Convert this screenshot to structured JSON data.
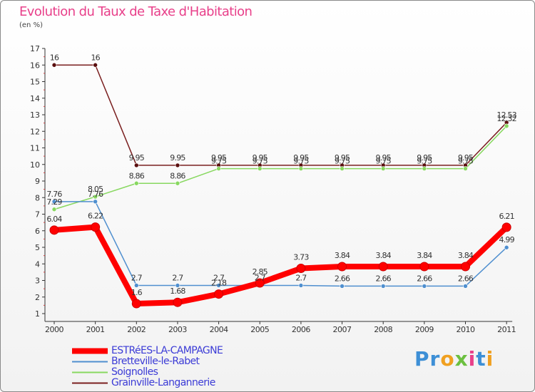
{
  "title": "Evolution du Taux de Taxe d'Habitation",
  "unit_label": "(en %)",
  "logo": {
    "letters": [
      {
        "char": "P",
        "color": "#3d8fd6"
      },
      {
        "char": "r",
        "color": "#3d8fd6"
      },
      {
        "char": "o",
        "color": "#f0a020"
      },
      {
        "char": "x",
        "color": "#6cc040"
      },
      {
        "char": "i",
        "color": "#e8408a"
      },
      {
        "char": "t",
        "color": "#3d8fd6"
      },
      {
        "char": "i",
        "color": "#f0a020"
      }
    ]
  },
  "chart_data": {
    "type": "line",
    "title": "Evolution du Taux de Taxe d'Habitation",
    "ylabel": "(en %)",
    "xlabel": "",
    "x": [
      "2000",
      "2001",
      "2002",
      "2003",
      "2004",
      "2005",
      "2006",
      "2007",
      "2008",
      "2009",
      "2010",
      "2011"
    ],
    "y_ticks": [
      "1",
      "2",
      "3",
      "4",
      "5",
      "6",
      "7",
      "8",
      "9",
      "10",
      "11",
      "12",
      "13",
      "14",
      "15",
      "16",
      "17"
    ],
    "ylim": [
      0.5,
      17
    ],
    "grid": false,
    "legend_position": "bottom-left",
    "series": [
      {
        "name": "ESTRéES-LA-CAMPAGNE",
        "color": "#ff0000",
        "stroke": 8,
        "values": [
          6.04,
          6.22,
          1.6,
          1.68,
          2.18,
          2.85,
          3.73,
          3.84,
          3.84,
          3.84,
          3.84,
          6.21
        ],
        "labels": [
          "6.04",
          "6.22",
          "1.6",
          "1.68",
          "2.18",
          "2.85",
          "3.73",
          "3.84",
          "3.84",
          "3.84",
          "3.84",
          "6.21"
        ]
      },
      {
        "name": "Bretteville-le-Rabet",
        "color": "#4f8fcf",
        "stroke": 1.5,
        "values": [
          7.76,
          7.76,
          2.7,
          2.7,
          2.7,
          2.7,
          2.7,
          2.66,
          2.66,
          2.66,
          2.66,
          4.99
        ],
        "labels": [
          "7.76",
          "7.76",
          "2.7",
          "2.7",
          "2.7",
          "2.7",
          "2.7",
          "2.66",
          "2.66",
          "2.66",
          "2.66",
          "4.99"
        ]
      },
      {
        "name": "Soignolles",
        "color": "#88d860",
        "stroke": 1.5,
        "values": [
          7.29,
          8.05,
          8.86,
          8.86,
          9.75,
          9.75,
          9.75,
          9.75,
          9.75,
          9.75,
          9.75,
          12.32
        ],
        "labels": [
          "7.29",
          "8.05",
          "8.86",
          "8.86",
          "9.75",
          "9.75",
          "9.75",
          "9.75",
          "9.75",
          "9.75",
          "9.75",
          "12.32"
        ]
      },
      {
        "name": "Grainville-Langannerie",
        "color": "#7a1f1f",
        "stroke": 1.5,
        "values": [
          16,
          16,
          9.95,
          9.95,
          9.95,
          9.95,
          9.95,
          9.95,
          9.95,
          9.95,
          9.95,
          12.53
        ],
        "labels": [
          "16",
          "16",
          "9.95",
          "9.95",
          "9.95",
          "9.95",
          "9.95",
          "9.95",
          "9.95",
          "9.95",
          "9.95",
          "12.53"
        ]
      }
    ]
  }
}
